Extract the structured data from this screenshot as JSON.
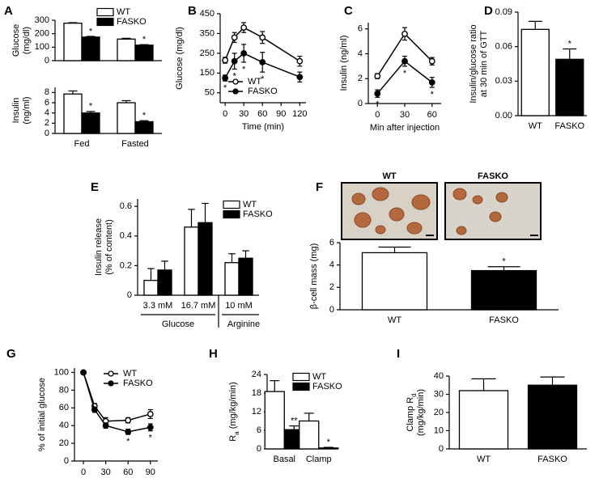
{
  "chart_data": [
    {
      "panel": "A",
      "type": "bar",
      "ylabel": [
        "Glucose",
        "(mg/dl)"
      ],
      "ylim": [
        0,
        300
      ],
      "yticks": [
        0,
        100,
        200,
        300
      ],
      "series": [
        {
          "name": "WT",
          "color": "#ffffff",
          "values": [
            278,
            160
          ],
          "errors": [
            4,
            6
          ]
        },
        {
          "name": "FASKO",
          "color": "#000000",
          "values": [
            175,
            115
          ],
          "errors": [
            5,
            4
          ],
          "annotations": [
            "*",
            "*"
          ]
        }
      ]
    },
    {
      "type": "bar",
      "ylabel": [
        "Insulin",
        "(ng/ml)"
      ],
      "ylim": [
        0,
        9
      ],
      "yticks": [
        0,
        2,
        4,
        6,
        8
      ],
      "categories": [
        "Fed",
        "Fasted"
      ],
      "series": [
        {
          "color": "#ffffff",
          "values": [
            7.7,
            6.0
          ],
          "errors": [
            0.6,
            0.4
          ]
        },
        {
          "color": "#000000",
          "values": [
            4.0,
            2.3
          ],
          "errors": [
            0.3,
            0.2
          ],
          "annotations": [
            "*",
            "*"
          ]
        }
      ]
    },
    {
      "panel": "B",
      "type": "line",
      "ylabel": [
        "Glucose (mg/dl)"
      ],
      "xlabel": "Time (min)",
      "x": [
        0,
        15,
        30,
        60,
        120
      ],
      "xlim": [
        -8,
        130
      ],
      "xticks": [
        0,
        30,
        60,
        90,
        120
      ],
      "ylim": [
        0,
        450
      ],
      "yticks": [
        50,
        150,
        250,
        350,
        450
      ],
      "series": [
        {
          "name": "WT",
          "color": "#000000",
          "marker_fill": "#ffffff",
          "values": [
            215,
            330,
            380,
            330,
            210
          ],
          "errors": [
            15,
            25,
            25,
            30,
            25
          ]
        },
        {
          "name": "FASKO",
          "color": "#000000",
          "marker_fill": "#000000",
          "values": [
            125,
            210,
            250,
            205,
            130
          ],
          "errors": [
            15,
            40,
            45,
            50,
            25
          ],
          "annotations": [
            "*",
            "*",
            "*",
            "*",
            null
          ]
        }
      ]
    },
    {
      "panel": "C",
      "type": "line",
      "ylabel": [
        "Insulin (ng/ml)"
      ],
      "xlabel": "Min after injection",
      "x": [
        0,
        30,
        60
      ],
      "xlim": [
        -10,
        70
      ],
      "xticks": [
        0,
        30,
        60
      ],
      "ylim": [
        0,
        6.5
      ],
      "yticks": [
        0,
        2,
        4,
        6
      ],
      "series": [
        {
          "color": "#000000",
          "marker_fill": "#ffffff",
          "values": [
            2.2,
            5.6,
            3.4
          ],
          "errors": [
            0.2,
            0.5,
            0.3
          ]
        },
        {
          "color": "#000000",
          "marker_fill": "#000000",
          "values": [
            0.8,
            3.4,
            1.7
          ],
          "errors": [
            0.3,
            0.4,
            0.4
          ],
          "annotations": [
            "*",
            "*",
            "*"
          ]
        }
      ]
    },
    {
      "panel": "D",
      "type": "bar",
      "ylabel": [
        "Insulin/glucose ratio",
        "at 30 min of GTT"
      ],
      "ylim": [
        0,
        0.09
      ],
      "yticks": [
        {
          "value": 0,
          "label": "0.00"
        },
        {
          "value": 0.03,
          "label": "0.03"
        },
        {
          "value": 0.06,
          "label": "0.06"
        },
        {
          "value": 0.09,
          "label": "0.09"
        }
      ],
      "categories": [
        "WT",
        "FASKO"
      ],
      "colors": [
        "#ffffff",
        "#000000"
      ],
      "values": [
        0.075,
        0.049
      ],
      "errors": [
        0.007,
        0.009
      ],
      "annotations": [
        null,
        "*"
      ]
    },
    {
      "panel": "E",
      "type": "bar",
      "ylabel": [
        "Insulin release",
        "(% of content)"
      ],
      "ylim": [
        0,
        0.65
      ],
      "yticks": [
        0,
        0.2,
        0.4,
        0.6
      ],
      "categories": [
        "3.3 mM",
        "16.7 mM",
        "10 mM"
      ],
      "group_labels": [
        "Glucose",
        "Arginine"
      ],
      "series": [
        {
          "name": "WT",
          "color": "#ffffff",
          "values": [
            0.1,
            0.46,
            0.22
          ],
          "errors": [
            0.08,
            0.12,
            0.06
          ]
        },
        {
          "name": "FASKO",
          "color": "#000000",
          "values": [
            0.17,
            0.49,
            0.25
          ],
          "errors": [
            0.06,
            0.13,
            0.05
          ]
        }
      ]
    },
    {
      "panel": "F",
      "type": "bar",
      "ylabel": [
        "β-cell mass (mg)"
      ],
      "ylim": [
        0,
        6
      ],
      "yticks": [
        0,
        2,
        4,
        6
      ],
      "image_labels": [
        "WT",
        "FASKO"
      ],
      "categories": [
        "WT",
        "FASKO"
      ],
      "colors": [
        "#ffffff",
        "#000000"
      ],
      "values": [
        5.1,
        3.5
      ],
      "errors": [
        0.5,
        0.35
      ],
      "annotations": [
        null,
        "*"
      ]
    },
    {
      "panel": "G",
      "type": "line",
      "ylabel": [
        "% of initial glucose"
      ],
      "xlabel": "Time (min)",
      "x": [
        0,
        15,
        30,
        60,
        90
      ],
      "xlim": [
        -12,
        100
      ],
      "xticks": [
        0,
        30,
        60,
        90
      ],
      "ylim": [
        0,
        105
      ],
      "yticks": [
        0,
        20,
        40,
        60,
        80,
        100
      ],
      "series": [
        {
          "name": "WT",
          "color": "#000000",
          "marker_fill": "#ffffff",
          "values": [
            100,
            62,
            45,
            46,
            53
          ],
          "errors": [
            0,
            3,
            4,
            3,
            5
          ]
        },
        {
          "name": "FASKO",
          "color": "#000000",
          "marker_fill": "#000000",
          "values": [
            100,
            58,
            40,
            33,
            38
          ],
          "errors": [
            0,
            3,
            3,
            3,
            4
          ],
          "annotations": [
            null,
            null,
            null,
            "*",
            "*"
          ]
        }
      ]
    },
    {
      "panel": "H",
      "type": "bar",
      "ylabel": [
        [
          "R",
          "a",
          " (mg/kg/min)"
        ]
      ],
      "ylim": [
        0,
        24
      ],
      "yticks": [
        0,
        6,
        12,
        18,
        24
      ],
      "categories": [
        "Basal",
        "Clamp"
      ],
      "series": [
        {
          "name": "WT",
          "color": "#ffffff",
          "values": [
            18.5,
            9.0
          ],
          "errors": [
            3.5,
            2.5
          ]
        },
        {
          "name": "FASKO",
          "color": "#000000",
          "values": [
            6.2,
            0.3
          ],
          "errors": [
            1.2,
            0.2
          ],
          "annotations": [
            "**",
            "*"
          ]
        }
      ]
    },
    {
      "panel": "I",
      "type": "bar",
      "ylabel": [
        [
          "Clamp R",
          "d"
        ],
        "(mg/kg/min)"
      ],
      "ylim": [
        0,
        40
      ],
      "yticks": [
        0,
        10,
        20,
        30,
        40
      ],
      "categories": [
        "WT",
        "FASKO"
      ],
      "colors": [
        "#ffffff",
        "#000000"
      ],
      "values": [
        32,
        35
      ],
      "errors": [
        6.5,
        4.5
      ]
    }
  ]
}
